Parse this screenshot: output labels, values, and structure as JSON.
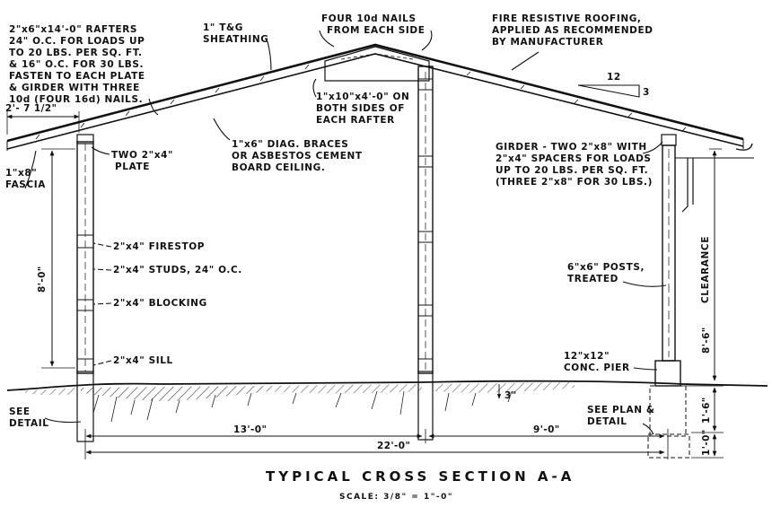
{
  "title": "TYPICAL CROSS SECTION A-A",
  "scale": "SCALE: 3/8\" = 1\"-0\"",
  "slope": {
    "rise": "3",
    "run": "12"
  },
  "notes": {
    "rafters": [
      "2\"x6\"x14'-0\" RAFTERS",
      "24\" O.C. FOR LOADS UP",
      "TO 20 LBS. PER SQ. FT.",
      "& 16\" O.C. FOR 30 LBS.",
      "FASTEN TO EACH PLATE",
      "& GIRDER WITH THREE",
      "10d (FOUR 16d) NAILS."
    ],
    "sheathing": [
      "1\" T&G",
      "SHEATHING"
    ],
    "nails": [
      "FOUR 10d NAILS",
      "FROM EACH SIDE"
    ],
    "roofing": [
      "FIRE RESISTIVE ROOFING,",
      "APPLIED AS RECOMMENDED",
      "BY MANUFACTURER"
    ],
    "ridge_board": [
      "1\"x10\"x4'-0\" ON",
      "BOTH SIDES OF",
      "EACH RAFTER"
    ],
    "braces": [
      "1\"x6\" DIAG. BRACES",
      "OR ASBESTOS CEMENT",
      "BOARD CEILING."
    ],
    "girder": [
      "GIRDER - TWO 2\"x8\" WITH",
      "2\"x4\" SPACERS FOR LOADS",
      "UP TO 20 LBS. PER SQ. FT.",
      "(THREE 2\"x8\" FOR 30 LBS.)"
    ],
    "plate": [
      "TWO 2\"x4\"",
      "PLATE"
    ],
    "fascia": [
      "1\"x8\"",
      "FASCIA"
    ],
    "firestop": "2\"x4\" FIRESTOP",
    "studs": "2\"x4\" STUDS, 24\" O.C.",
    "blocking": "2\"x4\" BLOCKING",
    "sill": "2\"x4\" SILL",
    "posts": [
      "6\"x6\" POSTS,",
      "TREATED"
    ],
    "pier": [
      "12\"x12\"",
      "CONC. PIER"
    ],
    "see_detail": [
      "SEE",
      "DETAIL"
    ],
    "see_plan": [
      "SEE PLAN &",
      "DETAIL"
    ],
    "clearance": "CLEARANCE"
  },
  "dimensions": {
    "overhang": "2'- 7 1/2\"",
    "wall_height": "8'-0\"",
    "post_height": "8'-6\"",
    "grade_drop": "3\"",
    "pier_height": "1'-6\"",
    "footing": "1'-0\"",
    "left_span": "13'-0\"",
    "right_span": "9'-0\"",
    "total_span": "22'-0\""
  }
}
